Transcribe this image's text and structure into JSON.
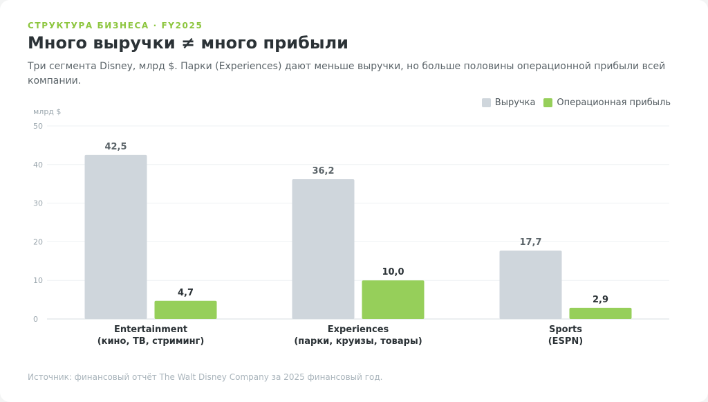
{
  "header": {
    "kicker": "СТРУКТУРА БИЗНЕСА · FY2025",
    "title": "Много выручки ≠ много прибыли",
    "subtitle": "Три сегмента Disney, млрд $. Парки (Experiences) дают меньше выручки, но больше половины операционной прибыли всей компании."
  },
  "footer": {
    "source": "Источник: финансовый отчёт The Walt Disney Company за 2025 финансовый год."
  },
  "colors": {
    "revenue": "#cfd6dc",
    "profit": "#96cf5a",
    "revenue_label": "#5b6469",
    "profit_label": "#2b3236"
  },
  "chart_data": {
    "type": "bar",
    "ylabel": "млрд $",
    "ylim": [
      0,
      50
    ],
    "yticks": [
      0,
      10,
      20,
      30,
      40,
      50
    ],
    "grid": true,
    "legend_position": "top-right",
    "categories": [
      {
        "line1": "Entertainment",
        "line2": "(кино, ТВ, стриминг)"
      },
      {
        "line1": "Experiences",
        "line2": "(парки, круизы, товары)"
      },
      {
        "line1": "Sports",
        "line2": "(ESPN)"
      }
    ],
    "series": [
      {
        "name": "Выручка",
        "values": [
          42.5,
          36.2,
          17.7
        ],
        "labels": [
          "42,5",
          "36,2",
          "17,7"
        ]
      },
      {
        "name": "Операционная прибыль",
        "values": [
          4.7,
          10.0,
          2.9
        ],
        "labels": [
          "4,7",
          "10,0",
          "2,9"
        ]
      }
    ]
  }
}
